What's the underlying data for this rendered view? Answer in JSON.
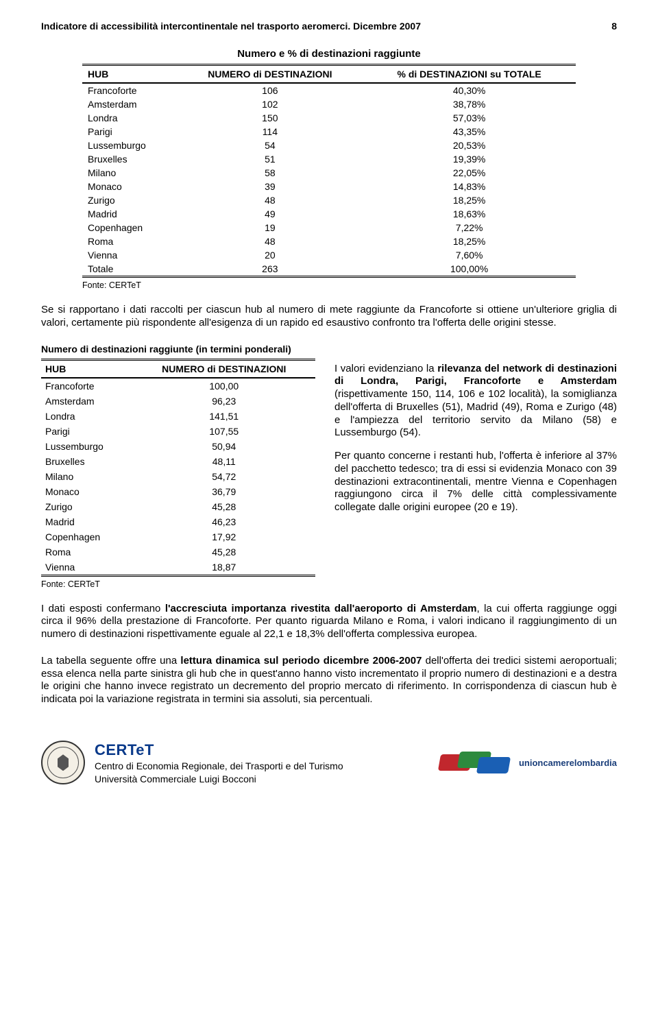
{
  "header": {
    "title": "Indicatore di accessibilità intercontinentale nel trasporto aeromerci. Dicembre 2007",
    "page_number": "8"
  },
  "table1": {
    "title": "Numero e % di destinazioni raggiunte",
    "columns": [
      "HUB",
      "NUMERO di DESTINAZIONI",
      "% di DESTINAZIONI su TOTALE"
    ],
    "rows": [
      [
        "Francoforte",
        "106",
        "40,30%"
      ],
      [
        "Amsterdam",
        "102",
        "38,78%"
      ],
      [
        "Londra",
        "150",
        "57,03%"
      ],
      [
        "Parigi",
        "114",
        "43,35%"
      ],
      [
        "Lussemburgo",
        "54",
        "20,53%"
      ],
      [
        "Bruxelles",
        "51",
        "19,39%"
      ],
      [
        "Milano",
        "58",
        "22,05%"
      ],
      [
        "Monaco",
        "39",
        "14,83%"
      ],
      [
        "Zurigo",
        "48",
        "18,25%"
      ],
      [
        "Madrid",
        "49",
        "18,63%"
      ],
      [
        "Copenhagen",
        "19",
        "7,22%"
      ],
      [
        "Roma",
        "48",
        "18,25%"
      ],
      [
        "Vienna",
        "20",
        "7,60%"
      ],
      [
        "Totale",
        "263",
        "100,00%"
      ]
    ],
    "source": "Fonte: CERTeT"
  },
  "para1": "Se si rapportano i dati raccolti per ciascun hub al numero di mete raggiunte da Francoforte si ottiene un'ulteriore griglia di valori, certamente più rispondente all'esigenza di un rapido ed esaustivo confronto tra l'offerta delle origini stesse.",
  "table2": {
    "title": "Numero di destinazioni raggiunte (in termini ponderali)",
    "columns": [
      "HUB",
      "NUMERO di DESTINAZIONI"
    ],
    "rows": [
      [
        "Francoforte",
        "100,00"
      ],
      [
        "Amsterdam",
        "96,23"
      ],
      [
        "Londra",
        "141,51"
      ],
      [
        "Parigi",
        "107,55"
      ],
      [
        "Lussemburgo",
        "50,94"
      ],
      [
        "Bruxelles",
        "48,11"
      ],
      [
        "Milano",
        "54,72"
      ],
      [
        "Monaco",
        "36,79"
      ],
      [
        "Zurigo",
        "45,28"
      ],
      [
        "Madrid",
        "46,23"
      ],
      [
        "Copenhagen",
        "17,92"
      ],
      [
        "Roma",
        "45,28"
      ],
      [
        "Vienna",
        "18,87"
      ]
    ],
    "source": "Fonte: CERTeT"
  },
  "right_text": {
    "p1_a": "I valori evidenziano la ",
    "p1_b": "rilevanza del network di destinazioni di Londra, Parigi, Francoforte e Amsterdam",
    "p1_c": " (rispettivamente 150, 114, 106 e 102 località), la somiglianza dell'offerta di Bruxelles (51), Madrid (49), Roma e Zurigo (48) e l'ampiezza del territorio servito da Milano (58) e Lussemburgo (54).",
    "p2": "Per quanto concerne i restanti hub, l'offerta è inferiore al 37% del pacchetto tedesco; tra di essi si evidenzia  Monaco con 39 destinazioni extracontinentali, mentre Vienna e Copenhagen raggiungono circa il 7% delle città complessivamente collegate dalle origini europee (20 e 19)."
  },
  "para2": {
    "a": "I dati esposti confermano ",
    "b": "l'accresciuta importanza rivestita dall'aeroporto di Amsterdam",
    "c": ", la cui offerta raggiunge oggi circa il 96% della prestazione di Francoforte. Per quanto riguarda Milano e Roma, i valori indicano il raggiungimento di un numero di destinazioni rispettivamente eguale al 22,1 e 18,3% dell'offerta complessiva europea."
  },
  "para3": {
    "a": "La tabella seguente offre una ",
    "b": "lettura dinamica sul periodo dicembre 2006-2007",
    "c": " dell'offerta dei tredici sistemi aeroportuali; essa elenca nella parte sinistra gli hub che in quest'anno hanno visto incrementato il proprio numero di destinazioni e a destra le origini che hanno invece registrato un decremento del proprio mercato di riferimento. In corrispondenza di ciascun hub è indicata poi la variazione registrata in termini sia assoluti, sia percentuali."
  },
  "footer": {
    "brand": "CERTeT",
    "line1": "Centro di Economia Regionale, dei Trasporti e del Turismo",
    "line2": "Università Commerciale Luigi Bocconi",
    "union_label": "unioncamerelombardia"
  }
}
